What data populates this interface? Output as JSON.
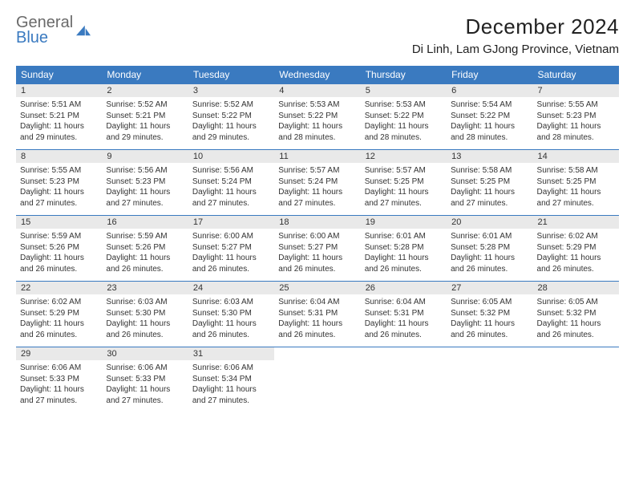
{
  "brand": {
    "line1": "General",
    "line2": "Blue"
  },
  "title": "December 2024",
  "location": "Di Linh, Lam GJong Province, Vietnam",
  "colors": {
    "header_bg": "#3a7ac0",
    "header_text": "#ffffff",
    "daynum_bg": "#e9e9e9",
    "border": "#3a7ac0",
    "body_text": "#333333",
    "page_bg": "#ffffff"
  },
  "typography": {
    "title_fontsize": 26,
    "location_fontsize": 15,
    "dow_fontsize": 12,
    "cell_fontsize": 10
  },
  "days_of_week": [
    "Sunday",
    "Monday",
    "Tuesday",
    "Wednesday",
    "Thursday",
    "Friday",
    "Saturday"
  ],
  "weeks": [
    [
      {
        "n": "1",
        "sunrise": "5:51 AM",
        "sunset": "5:21 PM",
        "daylight": "11 hours and 29 minutes."
      },
      {
        "n": "2",
        "sunrise": "5:52 AM",
        "sunset": "5:21 PM",
        "daylight": "11 hours and 29 minutes."
      },
      {
        "n": "3",
        "sunrise": "5:52 AM",
        "sunset": "5:22 PM",
        "daylight": "11 hours and 29 minutes."
      },
      {
        "n": "4",
        "sunrise": "5:53 AM",
        "sunset": "5:22 PM",
        "daylight": "11 hours and 28 minutes."
      },
      {
        "n": "5",
        "sunrise": "5:53 AM",
        "sunset": "5:22 PM",
        "daylight": "11 hours and 28 minutes."
      },
      {
        "n": "6",
        "sunrise": "5:54 AM",
        "sunset": "5:22 PM",
        "daylight": "11 hours and 28 minutes."
      },
      {
        "n": "7",
        "sunrise": "5:55 AM",
        "sunset": "5:23 PM",
        "daylight": "11 hours and 28 minutes."
      }
    ],
    [
      {
        "n": "8",
        "sunrise": "5:55 AM",
        "sunset": "5:23 PM",
        "daylight": "11 hours and 27 minutes."
      },
      {
        "n": "9",
        "sunrise": "5:56 AM",
        "sunset": "5:23 PM",
        "daylight": "11 hours and 27 minutes."
      },
      {
        "n": "10",
        "sunrise": "5:56 AM",
        "sunset": "5:24 PM",
        "daylight": "11 hours and 27 minutes."
      },
      {
        "n": "11",
        "sunrise": "5:57 AM",
        "sunset": "5:24 PM",
        "daylight": "11 hours and 27 minutes."
      },
      {
        "n": "12",
        "sunrise": "5:57 AM",
        "sunset": "5:25 PM",
        "daylight": "11 hours and 27 minutes."
      },
      {
        "n": "13",
        "sunrise": "5:58 AM",
        "sunset": "5:25 PM",
        "daylight": "11 hours and 27 minutes."
      },
      {
        "n": "14",
        "sunrise": "5:58 AM",
        "sunset": "5:25 PM",
        "daylight": "11 hours and 27 minutes."
      }
    ],
    [
      {
        "n": "15",
        "sunrise": "5:59 AM",
        "sunset": "5:26 PM",
        "daylight": "11 hours and 26 minutes."
      },
      {
        "n": "16",
        "sunrise": "5:59 AM",
        "sunset": "5:26 PM",
        "daylight": "11 hours and 26 minutes."
      },
      {
        "n": "17",
        "sunrise": "6:00 AM",
        "sunset": "5:27 PM",
        "daylight": "11 hours and 26 minutes."
      },
      {
        "n": "18",
        "sunrise": "6:00 AM",
        "sunset": "5:27 PM",
        "daylight": "11 hours and 26 minutes."
      },
      {
        "n": "19",
        "sunrise": "6:01 AM",
        "sunset": "5:28 PM",
        "daylight": "11 hours and 26 minutes."
      },
      {
        "n": "20",
        "sunrise": "6:01 AM",
        "sunset": "5:28 PM",
        "daylight": "11 hours and 26 minutes."
      },
      {
        "n": "21",
        "sunrise": "6:02 AM",
        "sunset": "5:29 PM",
        "daylight": "11 hours and 26 minutes."
      }
    ],
    [
      {
        "n": "22",
        "sunrise": "6:02 AM",
        "sunset": "5:29 PM",
        "daylight": "11 hours and 26 minutes."
      },
      {
        "n": "23",
        "sunrise": "6:03 AM",
        "sunset": "5:30 PM",
        "daylight": "11 hours and 26 minutes."
      },
      {
        "n": "24",
        "sunrise": "6:03 AM",
        "sunset": "5:30 PM",
        "daylight": "11 hours and 26 minutes."
      },
      {
        "n": "25",
        "sunrise": "6:04 AM",
        "sunset": "5:31 PM",
        "daylight": "11 hours and 26 minutes."
      },
      {
        "n": "26",
        "sunrise": "6:04 AM",
        "sunset": "5:31 PM",
        "daylight": "11 hours and 26 minutes."
      },
      {
        "n": "27",
        "sunrise": "6:05 AM",
        "sunset": "5:32 PM",
        "daylight": "11 hours and 26 minutes."
      },
      {
        "n": "28",
        "sunrise": "6:05 AM",
        "sunset": "5:32 PM",
        "daylight": "11 hours and 26 minutes."
      }
    ],
    [
      {
        "n": "29",
        "sunrise": "6:06 AM",
        "sunset": "5:33 PM",
        "daylight": "11 hours and 27 minutes."
      },
      {
        "n": "30",
        "sunrise": "6:06 AM",
        "sunset": "5:33 PM",
        "daylight": "11 hours and 27 minutes."
      },
      {
        "n": "31",
        "sunrise": "6:06 AM",
        "sunset": "5:34 PM",
        "daylight": "11 hours and 27 minutes."
      },
      null,
      null,
      null,
      null
    ]
  ],
  "labels": {
    "sunrise": "Sunrise:",
    "sunset": "Sunset:",
    "daylight": "Daylight:"
  }
}
